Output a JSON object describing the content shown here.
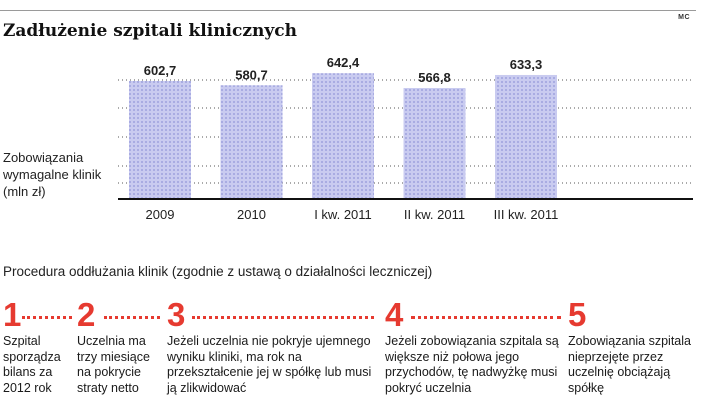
{
  "credit": "MC",
  "chart_data": {
    "type": "bar",
    "title": "Zadłużenie szpitali klinicznych",
    "ylabel": "Zobowiązania wymagalne klinik (mln zł)",
    "xlabel": "",
    "categories": [
      "2009",
      "2010",
      "I kw. 2011",
      "II kw. 2011",
      "III kw. 2011"
    ],
    "values": [
      602.7,
      580.7,
      642.4,
      566.8,
      633.3
    ],
    "value_labels": [
      "602,7",
      "580,7",
      "642,4",
      "566,8",
      "633,3"
    ],
    "ylim": [
      0,
      720
    ],
    "grid": true,
    "colors": {
      "bar": "#c9cbf0",
      "bar_pattern": "#9396d8",
      "grid": "#555555",
      "baseline": "#111111"
    }
  },
  "procedure": {
    "title": "Procedura oddłużania klinik (zgodnie z ustawą o działalności leczniczej)",
    "accent": "#e63a30",
    "steps": [
      {
        "number": "1",
        "text": "Szpital sporządza bilans za 2012 rok"
      },
      {
        "number": "2",
        "text": "Uczelnia ma trzy miesiące na pokrycie straty netto"
      },
      {
        "number": "3",
        "text": "Jeżeli uczelnia nie pokryje ujemnego wyniku kliniki, ma rok na przekształcenie jej w spółkę lub musi ją zlikwidować"
      },
      {
        "number": "4",
        "text": "Jeżeli zobowiązania szpitala są większe niż połowa jego przychodów, tę nadwyżkę musi pokryć uczelnia"
      },
      {
        "number": "5",
        "text": "Zobowiązania szpitala nieprzejęte przez uczelnię obciążają spółkę"
      }
    ]
  }
}
